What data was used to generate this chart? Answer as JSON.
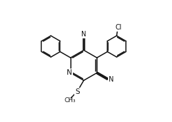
{
  "bg_color": "#ffffff",
  "line_color": "#111111",
  "line_width": 1.1,
  "font_size": 7.0,
  "figsize": [
    2.51,
    1.78
  ],
  "dpi": 100,
  "xlim": [
    0,
    10
  ],
  "ylim": [
    0,
    7.1
  ]
}
